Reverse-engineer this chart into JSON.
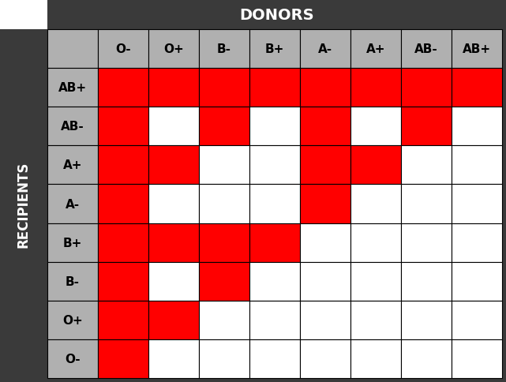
{
  "donors": [
    "O-",
    "O+",
    "B-",
    "B+",
    "A-",
    "A+",
    "AB-",
    "AB+"
  ],
  "recipients": [
    "AB+",
    "AB-",
    "A+",
    "A-",
    "B+",
    "B-",
    "O+",
    "O-"
  ],
  "compatibility": [
    [
      1,
      1,
      1,
      1,
      1,
      1,
      1,
      1
    ],
    [
      1,
      0,
      1,
      0,
      1,
      0,
      1,
      0
    ],
    [
      1,
      1,
      0,
      0,
      1,
      1,
      0,
      0
    ],
    [
      1,
      0,
      0,
      0,
      1,
      0,
      0,
      0
    ],
    [
      1,
      1,
      1,
      1,
      0,
      0,
      0,
      0
    ],
    [
      1,
      0,
      1,
      0,
      0,
      0,
      0,
      0
    ],
    [
      1,
      1,
      0,
      0,
      0,
      0,
      0,
      0
    ],
    [
      1,
      0,
      0,
      0,
      0,
      0,
      0,
      0
    ]
  ],
  "red_color": "#ff0000",
  "white_color": "#ffffff",
  "gray_header_color": "#b0b0b0",
  "dark_bg_color": "#3a3a3a",
  "header_text_color": "#ffffff",
  "cell_text_color": "#000000",
  "title": "DONORS",
  "row_label": "RECIPIENTS",
  "title_fontsize": 14,
  "header_fontsize": 11,
  "row_label_fontsize": 12
}
